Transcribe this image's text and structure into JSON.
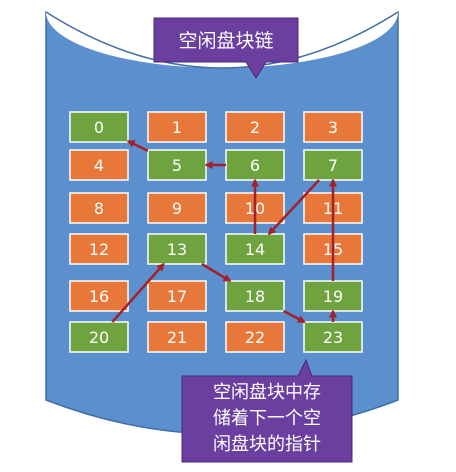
{
  "title_callout": {
    "text": "空闲盘块链"
  },
  "note_callout": {
    "lines": [
      "空闲盘块中存",
      "储着下一个空",
      "闲盘块的指针"
    ]
  },
  "colors": {
    "disk_body": "#5b8fce",
    "disk_top": "#ffffff",
    "disk_outline": "#3f6fa8",
    "free_block": "#6ea33f",
    "used_block": "#e8773a",
    "block_border": "#ffffff",
    "arrow": "#a3222a",
    "callout": "#6a3fa0"
  },
  "blocks": [
    {
      "id": "0",
      "status": "free"
    },
    {
      "id": "1",
      "status": "used"
    },
    {
      "id": "2",
      "status": "used"
    },
    {
      "id": "3",
      "status": "used"
    },
    {
      "id": "4",
      "status": "used"
    },
    {
      "id": "5",
      "status": "free"
    },
    {
      "id": "6",
      "status": "free"
    },
    {
      "id": "7",
      "status": "free"
    },
    {
      "id": "8",
      "status": "used"
    },
    {
      "id": "9",
      "status": "used"
    },
    {
      "id": "10",
      "status": "used"
    },
    {
      "id": "11",
      "status": "used"
    },
    {
      "id": "12",
      "status": "used"
    },
    {
      "id": "13",
      "status": "free"
    },
    {
      "id": "14",
      "status": "free"
    },
    {
      "id": "15",
      "status": "used"
    },
    {
      "id": "16",
      "status": "used"
    },
    {
      "id": "17",
      "status": "used"
    },
    {
      "id": "18",
      "status": "free"
    },
    {
      "id": "19",
      "status": "free"
    },
    {
      "id": "20",
      "status": "free"
    },
    {
      "id": "21",
      "status": "used"
    },
    {
      "id": "22",
      "status": "used"
    },
    {
      "id": "23",
      "status": "free"
    }
  ],
  "free_chain": [
    "20",
    "13",
    "18",
    "23",
    "19",
    "7",
    "14",
    "6",
    "5",
    "0"
  ]
}
